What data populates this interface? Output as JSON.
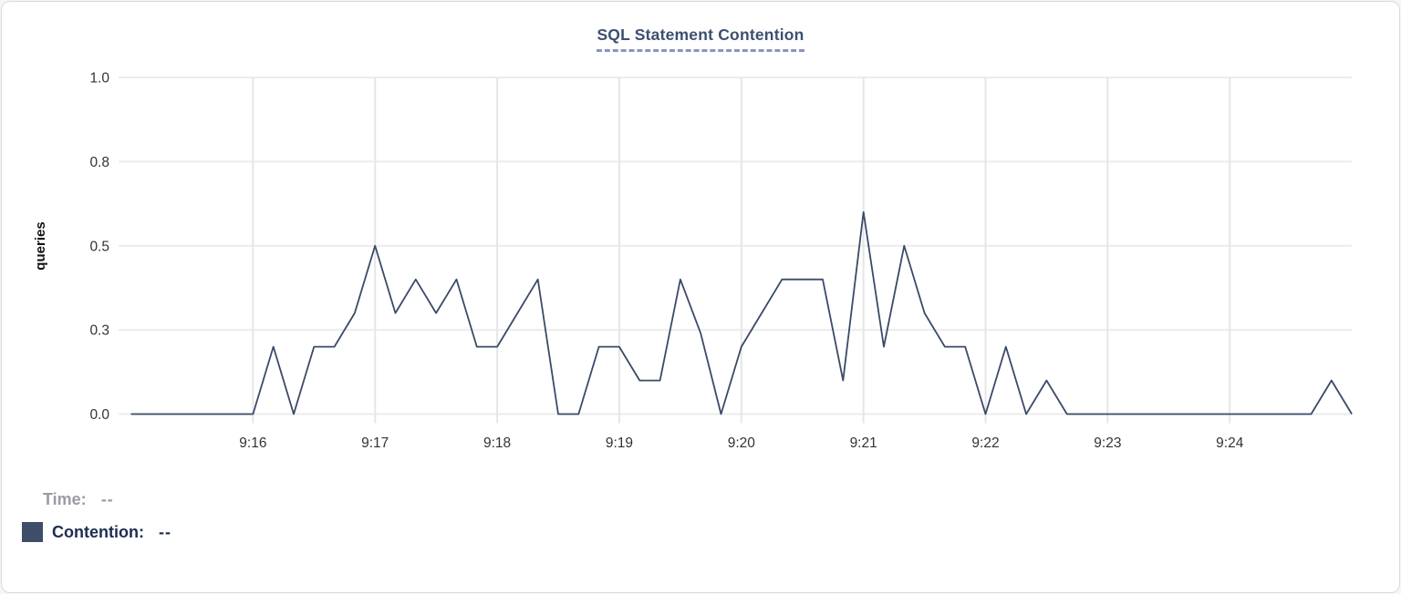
{
  "title": "SQL Statement Contention",
  "colors": {
    "title": "#3d5070",
    "title_underline": "#8a94bb",
    "grid_horizontal": "#ececec",
    "grid_vertical": "#e6e6e6",
    "axis_text": "#333333",
    "line": "#3b4a68",
    "legend_swatch": "#3e4d68",
    "legend_time_text": "#9b9ba3",
    "legend_contention_text": "#1e2d51",
    "card_border": "#dadada"
  },
  "legend": {
    "time": {
      "label": "Time:",
      "value": "--"
    },
    "contention": {
      "label": "Contention:",
      "value": "--"
    }
  },
  "chart_data": {
    "type": "line",
    "title": "SQL Statement Contention",
    "xlabel": "",
    "ylabel": "queries",
    "ylim": [
      0,
      1.0
    ],
    "grid": true,
    "legend_position": "below-left",
    "y_ticks": [
      {
        "v": 0.0,
        "label": "0.0"
      },
      {
        "v": 0.25,
        "label": "0.3"
      },
      {
        "v": 0.5,
        "label": "0.5"
      },
      {
        "v": 0.75,
        "label": "0.8"
      },
      {
        "v": 1.0,
        "label": "1.0"
      }
    ],
    "x_tick_labels": [
      "9:16",
      "9:17",
      "9:18",
      "9:19",
      "9:20",
      "9:21",
      "9:22",
      "9:23",
      "9:24"
    ],
    "x_tick_indices": [
      6,
      12,
      18,
      24,
      30,
      36,
      42,
      48,
      54
    ],
    "x_start_time": "9:15:00",
    "x_interval_seconds": 10,
    "series": [
      {
        "name": "Contention",
        "unit": "queries",
        "color": "#3b4a68",
        "values": [
          0,
          0,
          0,
          0,
          0,
          0,
          0,
          0.2,
          0,
          0.2,
          0.2,
          0.3,
          0.5,
          0.3,
          0.4,
          0.3,
          0.4,
          0.2,
          0.2,
          0.3,
          0.4,
          0,
          0,
          0.2,
          0.2,
          0.1,
          0.1,
          0.4,
          0.24,
          0,
          0.2,
          0.3,
          0.4,
          0.4,
          0.4,
          0.1,
          0.6,
          0.2,
          0.5,
          0.3,
          0.2,
          0.2,
          0,
          0.2,
          0,
          0.1,
          0,
          0,
          0,
          0,
          0,
          0,
          0,
          0,
          0,
          0,
          0,
          0,
          0,
          0.1,
          0
        ]
      }
    ]
  }
}
